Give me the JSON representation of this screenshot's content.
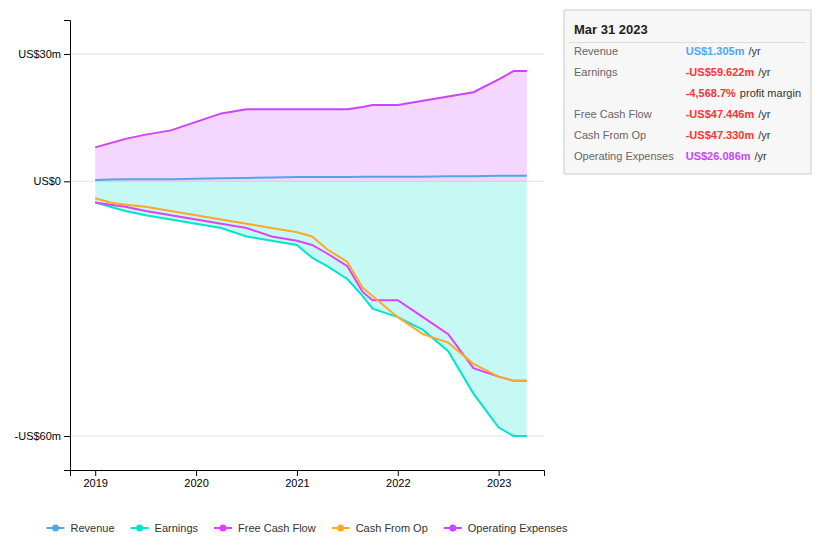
{
  "chart_data": {
    "type": "line",
    "x": [
      2019.0,
      2019.15,
      2019.3,
      2019.5,
      2019.75,
      2020.0,
      2020.25,
      2020.5,
      2020.75,
      2021.0,
      2021.15,
      2021.3,
      2021.5,
      2021.65,
      2021.75,
      2022.0,
      2022.25,
      2022.5,
      2022.75,
      2023.0,
      2023.15,
      2023.28
    ],
    "series": [
      {
        "name": "Revenue",
        "color": "#4ea8e8",
        "type": "line",
        "values": [
          0.3,
          0.4,
          0.5,
          0.5,
          0.5,
          0.6,
          0.7,
          0.8,
          0.9,
          1.0,
          1.0,
          1.0,
          1.0,
          1.1,
          1.1,
          1.1,
          1.1,
          1.2,
          1.2,
          1.3,
          1.3,
          1.3
        ]
      },
      {
        "name": "Earnings",
        "color": "#00e5cc",
        "type": "area",
        "values": [
          -5,
          -6,
          -7,
          -8,
          -9,
          -10,
          -11,
          -13,
          -14,
          -15,
          -18,
          -20,
          -23,
          -27,
          -30,
          -32,
          -35,
          -40,
          -50,
          -58,
          -60,
          -60
        ]
      },
      {
        "name": "Free Cash Flow",
        "color": "#e040fb",
        "type": "line",
        "values": [
          -5,
          -5.5,
          -6,
          -7,
          -8,
          -9,
          -10,
          -11,
          -13,
          -14,
          -15,
          -17,
          -20,
          -26,
          -28,
          -28,
          -32,
          -36,
          -44,
          -46,
          -47,
          -47
        ]
      },
      {
        "name": "Cash From Op",
        "color": "#ffa726",
        "type": "line",
        "values": [
          -4,
          -5,
          -5.5,
          -6,
          -7,
          -8,
          -9,
          -10,
          -11,
          -12,
          -13,
          -16,
          -19,
          -25,
          -27,
          -32,
          -36,
          -38,
          -43,
          -46,
          -47,
          -47
        ]
      },
      {
        "name": "Operating Expenses",
        "color": "#cc44ff",
        "type": "area",
        "values": [
          8,
          9,
          10,
          11,
          12,
          14,
          16,
          17,
          17,
          17,
          17,
          17,
          17,
          17.5,
          18,
          18,
          19,
          20,
          21,
          24,
          26,
          26
        ]
      }
    ],
    "xlim": [
      2018.75,
      2023.45
    ],
    "xticks": [
      2019,
      2020,
      2021,
      2022,
      2023
    ],
    "ylim": [
      -68,
      38
    ],
    "yticks": [
      {
        "value": 30,
        "label": "US$30m"
      },
      {
        "value": 0,
        "label": "US$0"
      },
      {
        "value": -60,
        "label": "-US$60m"
      }
    ],
    "grid": true,
    "legend": "bottom",
    "annotations": [
      {
        "text": [
          "Mar 31 2023"
        ]
      },
      {
        "text": [
          "Revenue",
          "US$1.305m",
          "/yr"
        ],
        "color": "#4da6ff"
      },
      {
        "text": [
          "Earnings",
          "-US$59.622m",
          "/yr"
        ],
        "color": "#ff3333"
      },
      {
        "text": [
          "-4,568.7%",
          "profit margin"
        ],
        "color": "#ff3333"
      },
      {
        "text": [
          "Free Cash Flow",
          "-US$47.446m",
          "/yr"
        ],
        "color": "#ff3333"
      },
      {
        "text": [
          "Cash From Op",
          "-US$47.330m",
          "/yr"
        ],
        "color": "#ff3333"
      },
      {
        "text": [
          "Operating Expenses",
          "US$26.086m",
          "/yr"
        ],
        "color": "#cc44ff"
      }
    ]
  }
}
